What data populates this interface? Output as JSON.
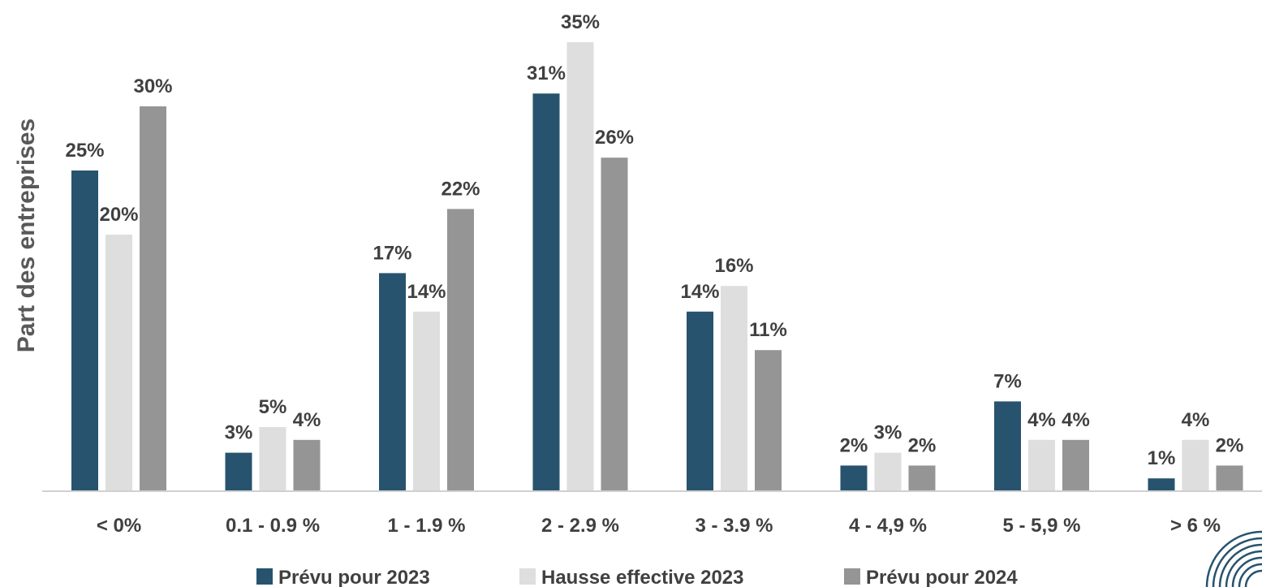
{
  "chart_data": {
    "type": "bar",
    "title": "",
    "xlabel": "",
    "ylabel": "Part des entreprises",
    "categories": [
      "< 0%",
      "0.1 - 0.9 %",
      "1 - 1.9 %",
      "2 - 2.9 %",
      "3 - 3.9 %",
      "4 - 4,9 %",
      "5 - 5,9 %",
      "> 6 %"
    ],
    "series": [
      {
        "name": "Prévu pour 2023",
        "color": "#27536e",
        "values": [
          25,
          3,
          17,
          31,
          14,
          2,
          7,
          1
        ]
      },
      {
        "name": "Hausse effective 2023",
        "color": "#dedede",
        "values": [
          20,
          5,
          14,
          35,
          16,
          3,
          4,
          4
        ]
      },
      {
        "name": "Prévu pour 2024",
        "color": "#959595",
        "values": [
          30,
          4,
          22,
          26,
          11,
          2,
          4,
          2
        ]
      }
    ],
    "data_labels": true,
    "label_suffix": "%",
    "ylim": [
      0,
      35
    ],
    "grid": false,
    "legend_position": "bottom"
  }
}
